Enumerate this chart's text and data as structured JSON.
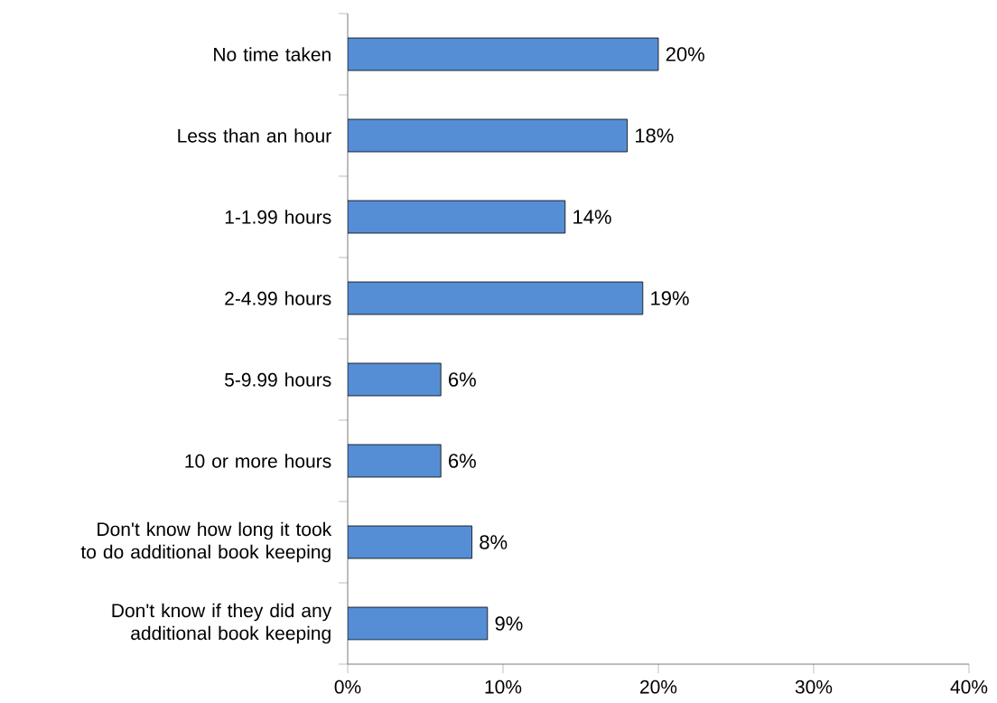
{
  "chart_data": {
    "type": "bar",
    "orientation": "horizontal",
    "categories": [
      "No time taken",
      "Less than an hour",
      "1-1.99 hours",
      "2-4.99 hours",
      "5-9.99 hours",
      "10 or more hours",
      "Don't know how long it took to do additional book keeping",
      "Don't know if they did any additional book keeping"
    ],
    "values": [
      20,
      18,
      14,
      19,
      6,
      6,
      8,
      9
    ],
    "value_labels": [
      "20%",
      "18%",
      "14%",
      "19%",
      "6%",
      "6%",
      "8%",
      "9%"
    ],
    "color": "#558ed5",
    "xlim": [
      0,
      40
    ],
    "xticks": [
      {
        "value": 0,
        "label": "0%"
      },
      {
        "value": 10,
        "label": "10%"
      },
      {
        "value": 20,
        "label": "20%"
      },
      {
        "value": 30,
        "label": "30%"
      },
      {
        "value": 40,
        "label": "40%"
      }
    ],
    "grid": false
  }
}
